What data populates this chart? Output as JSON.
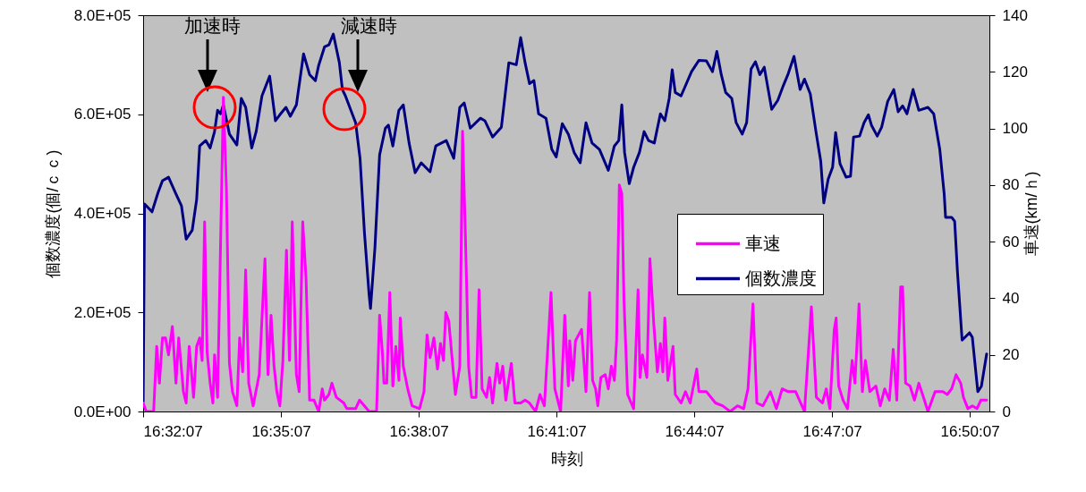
{
  "chart_data": {
    "type": "line",
    "xlabel": "時刻",
    "ylabel": "個数濃度(個/ｃｃ)",
    "y2label": "車速(km/ｈ)",
    "xlim": [
      16.53528,
      16.8424
    ],
    "xticks": [
      {
        "value": 16.53528,
        "label": "16:32:07"
      },
      {
        "value": 16.58528,
        "label": "16:35:07"
      },
      {
        "value": 16.63528,
        "label": "16:38:07"
      },
      {
        "value": 16.68528,
        "label": "16:41:07"
      },
      {
        "value": 16.73528,
        "label": "16:44:07"
      },
      {
        "value": 16.78528,
        "label": "16:47:07"
      },
      {
        "value": 16.83528,
        "label": "16:50:07"
      }
    ],
    "ylim": [
      0,
      800000
    ],
    "yticks": [
      {
        "value": 0,
        "label": "0.0E+00"
      },
      {
        "value": 200000,
        "label": "2.0E+05"
      },
      {
        "value": 400000,
        "label": "4.0E+05"
      },
      {
        "value": 600000,
        "label": "6.0E+05"
      },
      {
        "value": 800000,
        "label": "8.0E+05"
      }
    ],
    "y2lim": [
      0,
      140
    ],
    "y2ticks": [
      0,
      20,
      40,
      60,
      80,
      100,
      120,
      140
    ],
    "legend": "right",
    "grid": false,
    "annotations": [
      "加速時",
      "減速時"
    ],
    "series": [
      {
        "name": "車速",
        "color": "#ff00ff",
        "axis": "y2",
        "x": [
          16.5353,
          16.5364,
          16.5391,
          16.5402,
          16.5412,
          16.5423,
          16.5434,
          16.5445,
          16.5459,
          16.5472,
          16.5482,
          16.5499,
          16.5509,
          16.552,
          16.5536,
          16.5547,
          16.5558,
          16.5567,
          16.5576,
          16.5585,
          16.5596,
          16.5606,
          16.5612,
          16.5623,
          16.5634,
          16.5644,
          16.5655,
          16.5666,
          16.5677,
          16.5693,
          16.5703,
          16.5714,
          16.5725,
          16.5736,
          16.5752,
          16.5774,
          16.5795,
          16.5806,
          16.5817,
          16.5828,
          16.5838,
          16.5849,
          16.586,
          16.5873,
          16.5884,
          16.5894,
          16.5909,
          16.5919,
          16.5932,
          16.5944,
          16.5957,
          16.5973,
          16.599,
          16.6003,
          16.6011,
          16.6027,
          16.6038,
          16.6054,
          16.6081,
          16.6092,
          16.6124,
          16.6138,
          16.6156,
          16.6173,
          16.62,
          16.6211,
          16.6221,
          16.6227,
          16.6237,
          16.6248,
          16.6259,
          16.627,
          16.6281,
          16.6286,
          16.6297,
          16.6313,
          16.6329,
          16.6356,
          16.6372,
          16.6383,
          16.6394,
          16.6408,
          16.6421,
          16.6432,
          16.6443,
          16.6451,
          16.6462,
          16.6473,
          16.6486,
          16.6502,
          16.6512,
          16.6523,
          16.6534,
          16.6545,
          16.6561,
          16.6572,
          16.6583,
          16.6599,
          16.661,
          16.6621,
          16.6637,
          16.6647,
          16.6658,
          16.6669,
          16.6689,
          16.6702,
          16.6723,
          16.6739,
          16.6755,
          16.6777,
          16.6793,
          16.6809,
          16.6833,
          16.6847,
          16.6868,
          16.6883,
          16.6896,
          16.6901,
          16.6912,
          16.6922,
          16.6944,
          16.696,
          16.6973,
          16.6984,
          16.6995,
          16.7003,
          16.7014,
          16.703,
          16.7041,
          16.7052,
          16.7063,
          16.7071,
          16.7081,
          16.709,
          16.7098,
          16.7111,
          16.7133,
          16.7149,
          16.7156,
          16.7165,
          16.7181,
          16.7192,
          16.7206,
          16.7219,
          16.723,
          16.7239,
          16.7246,
          16.7257,
          16.7276,
          16.7284,
          16.7305,
          16.7321,
          16.7338,
          16.7362,
          16.737,
          16.7397,
          16.743,
          16.7456,
          16.7483,
          16.751,
          16.7532,
          16.7548,
          16.7566,
          16.758,
          16.7602,
          16.7629,
          16.7651,
          16.7672,
          16.7694,
          16.7721,
          16.7753,
          16.7778,
          16.7796,
          16.7818,
          16.7832,
          16.7845,
          16.7861,
          16.7868,
          16.7877,
          16.7893,
          16.7909,
          16.7926,
          16.7936,
          16.7951,
          16.7963,
          16.7974,
          16.799,
          16.8012,
          16.8028,
          16.8044,
          16.8061,
          16.8075,
          16.8088,
          16.8102,
          16.8109,
          16.812,
          16.8136,
          16.8152,
          16.8168,
          16.8185,
          16.8201,
          16.8227,
          16.8255,
          16.8271,
          16.8287,
          16.8303,
          16.832,
          16.833,
          16.8346,
          16.8362,
          16.8379,
          16.8393,
          16.8414
        ],
        "values": [
          3,
          0,
          0,
          23,
          10,
          26,
          26,
          20,
          30,
          10,
          26,
          7,
          3,
          23,
          5,
          23,
          26,
          18,
          67,
          21,
          10,
          3,
          20,
          5,
          60,
          111,
          79,
          17,
          7,
          2,
          26,
          14,
          50,
          10,
          2,
          13,
          54,
          13,
          34,
          16,
          7,
          2,
          18,
          57,
          18,
          67,
          13,
          7,
          67,
          47,
          4,
          4,
          0,
          8,
          4,
          6,
          10,
          5,
          3,
          1,
          1,
          4,
          2,
          0,
          0,
          34,
          21,
          10,
          10,
          42,
          9,
          23,
          11,
          33,
          16,
          8,
          2,
          1,
          7,
          27,
          19,
          26,
          15,
          24,
          18,
          35,
          32,
          20,
          6,
          16,
          99,
          60,
          16,
          5,
          5,
          43,
          8,
          5,
          12,
          3,
          17,
          10,
          16,
          4,
          17,
          3,
          3,
          4,
          3,
          0,
          6,
          2,
          42,
          8,
          0,
          34,
          9,
          25,
          11,
          25,
          29,
          7,
          42,
          11,
          8,
          2,
          12,
          13,
          8,
          16,
          11,
          25,
          80,
          77,
          39,
          6,
          1,
          43,
          12,
          20,
          12,
          54,
          31,
          14,
          24,
          14,
          33,
          11,
          23,
          6,
          3,
          7,
          3,
          15,
          7,
          7,
          3,
          2,
          0,
          2,
          1,
          8,
          38,
          3,
          2,
          7,
          1,
          8,
          7,
          7,
          0,
          37,
          5,
          3,
          8,
          1,
          29,
          33,
          9,
          4,
          1,
          18,
          10,
          38,
          7,
          18,
          7,
          9,
          2,
          8,
          4,
          22,
          4,
          44,
          44,
          10,
          9,
          4,
          10,
          5,
          0,
          7,
          7,
          6,
          8,
          13,
          10,
          5,
          1,
          2,
          1,
          4,
          4
        ]
      },
      {
        "name": "個数濃度",
        "color": "#000080",
        "x": [
          16.5353,
          16.5358,
          16.5385,
          16.5407,
          16.5423,
          16.5445,
          16.5472,
          16.5492,
          16.5509,
          16.5531,
          16.5547,
          16.5558,
          16.558,
          16.5596,
          16.5612,
          16.5623,
          16.5634,
          16.5644,
          16.5666,
          16.5693,
          16.5709,
          16.5725,
          16.5747,
          16.5763,
          16.5784,
          16.5812,
          16.5833,
          16.5849,
          16.5871,
          16.5887,
          16.5909,
          16.5935,
          16.5957,
          16.5978,
          16.599,
          16.6011,
          16.6027,
          16.6043,
          16.6065,
          16.6076,
          16.6087,
          16.6124,
          16.614,
          16.6156,
          16.6173,
          16.6178,
          16.6194,
          16.6211,
          16.6232,
          16.6243,
          16.6259,
          16.6281,
          16.6297,
          16.6318,
          16.634,
          16.6362,
          16.6394,
          16.6415,
          16.6453,
          16.648,
          16.6502,
          16.6518,
          16.654,
          16.6577,
          16.6593,
          16.6621,
          16.6653,
          16.668,
          16.6707,
          16.6723,
          16.6739,
          16.6755,
          16.6771,
          16.6788,
          16.6815,
          16.6836,
          16.6852,
          16.6874,
          16.6896,
          16.6917,
          16.6939,
          16.696,
          16.6982,
          16.7009,
          16.7041,
          16.7063,
          16.7079,
          16.709,
          16.71,
          16.7117,
          16.7133,
          16.7154,
          16.7171,
          16.7187,
          16.7208,
          16.723,
          16.7246,
          16.7262,
          16.7273,
          16.7284,
          16.7305,
          16.7343,
          16.737,
          16.7397,
          16.7419,
          16.7435,
          16.7451,
          16.7467,
          16.7489,
          16.7505,
          16.7527,
          16.7543,
          16.7559,
          16.7575,
          16.7591,
          16.7607,
          16.7634,
          16.7656,
          16.7677,
          16.7694,
          16.7715,
          16.7737,
          16.7753,
          16.7774,
          16.7796,
          16.7812,
          16.7823,
          16.7839,
          16.7855,
          16.7866,
          16.7882,
          16.7904,
          16.792,
          16.7931,
          16.7953,
          16.7969,
          16.7985,
          16.7996,
          16.8017,
          16.8033,
          16.8055,
          16.8077,
          16.8093,
          16.8109,
          16.8125,
          16.8147,
          16.8168,
          16.8201,
          16.8222,
          16.8244,
          16.826,
          16.8265,
          16.8287,
          16.8298,
          16.8308,
          16.8325,
          16.8352,
          16.8362,
          16.8382,
          16.8395,
          16.8414
        ],
        "values": [
          20000,
          419000,
          403000,
          442000,
          466000,
          473000,
          439000,
          415000,
          348000,
          366000,
          428000,
          536000,
          547000,
          532000,
          565000,
          608000,
          601000,
          619000,
          560000,
          538000,
          632000,
          614000,
          532000,
          565000,
          637000,
          677000,
          587000,
          599000,
          614000,
          596000,
          619000,
          722000,
          680000,
          668000,
          699000,
          736000,
          740000,
          762000,
          704000,
          650000,
          637000,
          583000,
          511000,
          361000,
          235000,
          208000,
          330000,
          518000,
          572000,
          578000,
          536000,
          608000,
          619000,
          542000,
          482000,
          502000,
          484000,
          536000,
          547000,
          511000,
          614000,
          623000,
          572000,
          592000,
          587000,
          554000,
          574000,
          704000,
          700000,
          755000,
          704000,
          662000,
          668000,
          601000,
          592000,
          529000,
          514000,
          581000,
          560000,
          523000,
          502000,
          583000,
          542000,
          529000,
          487000,
          536000,
          547000,
          619000,
          523000,
          460000,
          493000,
          523000,
          565000,
          547000,
          542000,
          601000,
          587000,
          632000,
          690000,
          644000,
          637000,
          686000,
          709000,
          708000,
          686000,
          727000,
          680000,
          644000,
          632000,
          583000,
          560000,
          583000,
          691000,
          706000,
          680000,
          695000,
          610000,
          628000,
          659000,
          682000,
          717000,
          650000,
          671000,
          641000,
          560000,
          505000,
          421000,
          469000,
          493000,
          563000,
          500000,
          473000,
          475000,
          554000,
          556000,
          583000,
          599000,
          578000,
          556000,
          574000,
          626000,
          650000,
          605000,
          617000,
          601000,
          650000,
          608000,
          614000,
          601000,
          529000,
          439000,
          392000,
          392000,
          384000,
          283000,
          144000,
          159000,
          150000,
          40000,
          51000,
          116000
        ]
      }
    ]
  }
}
